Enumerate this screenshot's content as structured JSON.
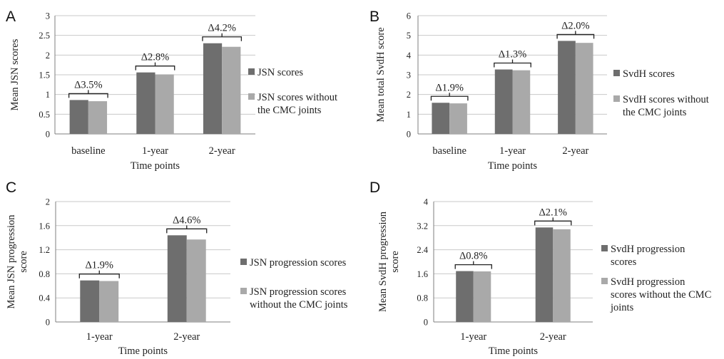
{
  "chart_data": [
    {
      "panel": "A",
      "type": "bar",
      "categories": [
        "baseline",
        "1-year",
        "2-year"
      ],
      "series": [
        {
          "name": "JSN scores",
          "values": [
            0.86,
            1.56,
            2.3
          ],
          "color": "#6e6e6e"
        },
        {
          "name": "JSN scores without the CMC joints",
          "values": [
            0.83,
            1.51,
            2.21
          ],
          "color": "#a9a9a9"
        }
      ],
      "annotations": [
        "Δ3.5%",
        "Δ2.8%",
        "Δ4.2%"
      ],
      "xlabel": "Time points",
      "ylabel": "Mean JSN scores",
      "ylim": [
        0,
        3
      ],
      "yticks": [
        0,
        0.5,
        1,
        1.5,
        2,
        2.5,
        3
      ],
      "ytick_labels": [
        "0",
        "0.5",
        "1",
        "1.5",
        "2",
        "2.5",
        "3"
      ],
      "legend_lines": [
        [
          "JSN scores"
        ],
        [
          "JSN scores without",
          "the CMC joints"
        ]
      ],
      "grid": true,
      "legend_position": "right"
    },
    {
      "panel": "B",
      "type": "bar",
      "categories": [
        "baseline",
        "1-year",
        "2-year"
      ],
      "series": [
        {
          "name": "SvdH scores",
          "values": [
            1.58,
            3.27,
            4.72
          ],
          "color": "#6e6e6e"
        },
        {
          "name": "SvdH scores without the CMC joints",
          "values": [
            1.55,
            3.23,
            4.62
          ],
          "color": "#a9a9a9"
        }
      ],
      "annotations": [
        "Δ1.9%",
        "Δ1.3%",
        "Δ2.0%"
      ],
      "xlabel": "Time points",
      "ylabel": "Mean total SvdH score",
      "ylim": [
        0,
        6
      ],
      "yticks": [
        0,
        1,
        2,
        3,
        4,
        5,
        6
      ],
      "ytick_labels": [
        "0",
        "1",
        "2",
        "3",
        "4",
        "5",
        "6"
      ],
      "legend_lines": [
        [
          "SvdH scores"
        ],
        [
          "SvdH scores without",
          "the CMC joints"
        ]
      ],
      "grid": true,
      "legend_position": "right"
    },
    {
      "panel": "C",
      "type": "bar",
      "categories": [
        "1-year",
        "2-year"
      ],
      "series": [
        {
          "name": "JSN progression scores",
          "values": [
            0.69,
            1.44
          ],
          "color": "#6e6e6e"
        },
        {
          "name": "JSN progression scores without the CMC joints",
          "values": [
            0.68,
            1.37
          ],
          "color": "#a9a9a9"
        }
      ],
      "annotations": [
        "Δ1.9%",
        "Δ4.6%"
      ],
      "xlabel": "Time points",
      "ylabel": "Mean JSN progression score",
      "ylabel_lines": [
        "Mean JSN progression",
        "score"
      ],
      "ylim": [
        0,
        2
      ],
      "yticks": [
        0,
        0.4,
        0.8,
        1.2,
        1.6,
        2
      ],
      "ytick_labels": [
        "0",
        "0.4",
        "0.8",
        "1.2",
        "1.6",
        "2"
      ],
      "legend_lines": [
        [
          "JSN progression scores"
        ],
        [
          "JSN progression scores",
          "without the CMC joints"
        ]
      ],
      "grid": true,
      "legend_position": "right"
    },
    {
      "panel": "D",
      "type": "bar",
      "categories": [
        "1-year",
        "2-year"
      ],
      "series": [
        {
          "name": "SvdH progression scores",
          "values": [
            1.69,
            3.14
          ],
          "color": "#6e6e6e"
        },
        {
          "name": "SvdH progression scores without the CMC joints",
          "values": [
            1.68,
            3.08
          ],
          "color": "#a9a9a9"
        }
      ],
      "annotations": [
        "Δ0.8%",
        "Δ2.1%"
      ],
      "xlabel": "Time points",
      "ylabel": "Mean SvdH progression score",
      "ylabel_lines": [
        "Mean SvdH progression",
        "score"
      ],
      "ylim": [
        0,
        4
      ],
      "yticks": [
        0,
        0.8,
        1.6,
        2.4,
        3.2,
        4
      ],
      "ytick_labels": [
        "0",
        "0.8",
        "1.6",
        "2.4",
        "3.2",
        "4"
      ],
      "legend_lines": [
        [
          "SvdH progression",
          "scores"
        ],
        [
          "SvdH progression",
          "scores without the CMC",
          "joints"
        ]
      ],
      "grid": true,
      "legend_position": "right"
    }
  ]
}
